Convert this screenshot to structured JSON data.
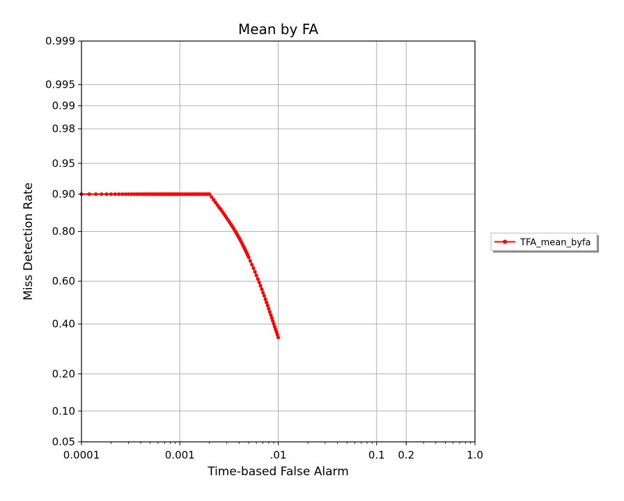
{
  "chart_data": {
    "type": "line",
    "title": "Mean by FA",
    "xlabel": "Time-based False Alarm",
    "ylabel": "Miss Detection Rate",
    "x_scale": "log",
    "y_scale": "normal-deviate",
    "xlim": [
      0.0001,
      1.0
    ],
    "ylim": [
      0.05,
      0.999
    ],
    "grid": true,
    "legend_position": "right",
    "x_ticks": [
      {
        "value": 0.0001,
        "label": "0.0001"
      },
      {
        "value": 0.001,
        "label": "0.001"
      },
      {
        "value": 0.01,
        "label": ".01"
      },
      {
        "value": 0.1,
        "label": "0.1"
      },
      {
        "value": 0.2,
        "label": "0.2"
      },
      {
        "value": 1.0,
        "label": "1.0"
      }
    ],
    "y_ticks": [
      {
        "value": 0.05,
        "label": "0.05"
      },
      {
        "value": 0.1,
        "label": "0.10"
      },
      {
        "value": 0.2,
        "label": "0.20"
      },
      {
        "value": 0.4,
        "label": "0.40"
      },
      {
        "value": 0.6,
        "label": "0.60"
      },
      {
        "value": 0.8,
        "label": "0.80"
      },
      {
        "value": 0.9,
        "label": "0.90"
      },
      {
        "value": 0.95,
        "label": "0.95"
      },
      {
        "value": 0.98,
        "label": "0.98"
      },
      {
        "value": 0.99,
        "label": "0.99"
      },
      {
        "value": 0.995,
        "label": "0.995"
      },
      {
        "value": 0.999,
        "label": "0.999"
      }
    ],
    "series": [
      {
        "name": "TFA_mean_byfa",
        "color": "#ff0000",
        "marker": "dot",
        "points": [
          [
            0.0001,
            0.9
          ],
          [
            0.00012,
            0.9
          ],
          [
            0.00014,
            0.9
          ],
          [
            0.00016,
            0.9
          ],
          [
            0.00018,
            0.9
          ],
          [
            0.0002,
            0.9
          ],
          [
            0.00022,
            0.9
          ],
          [
            0.00024,
            0.9
          ],
          [
            0.00026,
            0.9
          ],
          [
            0.00028,
            0.9
          ],
          [
            0.0003,
            0.9
          ],
          [
            0.00032,
            0.9
          ],
          [
            0.00034,
            0.9
          ],
          [
            0.00036,
            0.9
          ],
          [
            0.00038,
            0.9
          ],
          [
            0.0004,
            0.9
          ],
          [
            0.00042,
            0.9
          ],
          [
            0.00044,
            0.9
          ],
          [
            0.00046,
            0.9
          ],
          [
            0.00048,
            0.9
          ],
          [
            0.0005,
            0.9
          ],
          [
            0.00052,
            0.9
          ],
          [
            0.00054,
            0.9
          ],
          [
            0.00056,
            0.9
          ],
          [
            0.00058,
            0.9
          ],
          [
            0.0006,
            0.9
          ],
          [
            0.00062,
            0.9
          ],
          [
            0.00064,
            0.9
          ],
          [
            0.00066,
            0.9
          ],
          [
            0.00068,
            0.9
          ],
          [
            0.0007,
            0.9
          ],
          [
            0.00072,
            0.9
          ],
          [
            0.00074,
            0.9
          ],
          [
            0.00076,
            0.9
          ],
          [
            0.00078,
            0.9
          ],
          [
            0.0008,
            0.9
          ],
          [
            0.00082,
            0.9
          ],
          [
            0.00084,
            0.9
          ],
          [
            0.00086,
            0.9
          ],
          [
            0.00088,
            0.9
          ],
          [
            0.0009,
            0.9
          ],
          [
            0.00092,
            0.9
          ],
          [
            0.00094,
            0.9
          ],
          [
            0.00096,
            0.9
          ],
          [
            0.00098,
            0.9
          ],
          [
            0.001,
            0.9
          ],
          [
            0.00105,
            0.9
          ],
          [
            0.0011,
            0.9
          ],
          [
            0.00115,
            0.9
          ],
          [
            0.0012,
            0.9
          ],
          [
            0.00125,
            0.9
          ],
          [
            0.0013,
            0.9
          ],
          [
            0.00135,
            0.9
          ],
          [
            0.0014,
            0.9
          ],
          [
            0.00145,
            0.9
          ],
          [
            0.0015,
            0.9
          ],
          [
            0.00155,
            0.9
          ],
          [
            0.0016,
            0.9
          ],
          [
            0.00165,
            0.9
          ],
          [
            0.0017,
            0.9
          ],
          [
            0.00175,
            0.9
          ],
          [
            0.0018,
            0.9
          ],
          [
            0.00185,
            0.9
          ],
          [
            0.0019,
            0.9
          ],
          [
            0.00195,
            0.9
          ],
          [
            0.002,
            0.9
          ],
          [
            0.0021,
            0.894
          ],
          [
            0.0022,
            0.888
          ],
          [
            0.0023,
            0.882
          ],
          [
            0.0024,
            0.876
          ],
          [
            0.0025,
            0.87
          ],
          [
            0.0026,
            0.865
          ],
          [
            0.0027,
            0.859
          ],
          [
            0.0028,
            0.853
          ],
          [
            0.0029,
            0.847
          ],
          [
            0.003,
            0.841
          ],
          [
            0.0031,
            0.835
          ],
          [
            0.0032,
            0.829
          ],
          [
            0.0033,
            0.823
          ],
          [
            0.0034,
            0.817
          ],
          [
            0.0035,
            0.811
          ],
          [
            0.0036,
            0.804
          ],
          [
            0.0037,
            0.798
          ],
          [
            0.0038,
            0.791
          ],
          [
            0.0039,
            0.784
          ],
          [
            0.004,
            0.778
          ],
          [
            0.0041,
            0.771
          ],
          [
            0.0042,
            0.764
          ],
          [
            0.0043,
            0.757
          ],
          [
            0.0044,
            0.749
          ],
          [
            0.0045,
            0.742
          ],
          [
            0.0046,
            0.735
          ],
          [
            0.0047,
            0.727
          ],
          [
            0.0048,
            0.72
          ],
          [
            0.0049,
            0.712
          ],
          [
            0.005,
            0.704
          ],
          [
            0.0052,
            0.689
          ],
          [
            0.0054,
            0.673
          ],
          [
            0.0056,
            0.658
          ],
          [
            0.0058,
            0.642
          ],
          [
            0.006,
            0.626
          ],
          [
            0.0062,
            0.61
          ],
          [
            0.0064,
            0.595
          ],
          [
            0.0066,
            0.579
          ],
          [
            0.0068,
            0.563
          ],
          [
            0.007,
            0.547
          ],
          [
            0.0072,
            0.532
          ],
          [
            0.0074,
            0.516
          ],
          [
            0.0076,
            0.501
          ],
          [
            0.0078,
            0.486
          ],
          [
            0.008,
            0.471
          ],
          [
            0.0082,
            0.456
          ],
          [
            0.0084,
            0.442
          ],
          [
            0.0086,
            0.428
          ],
          [
            0.0088,
            0.414
          ],
          [
            0.009,
            0.401
          ],
          [
            0.0092,
            0.388
          ],
          [
            0.0094,
            0.376
          ],
          [
            0.0096,
            0.364
          ],
          [
            0.0098,
            0.352
          ],
          [
            0.01,
            0.34
          ]
        ]
      }
    ]
  }
}
